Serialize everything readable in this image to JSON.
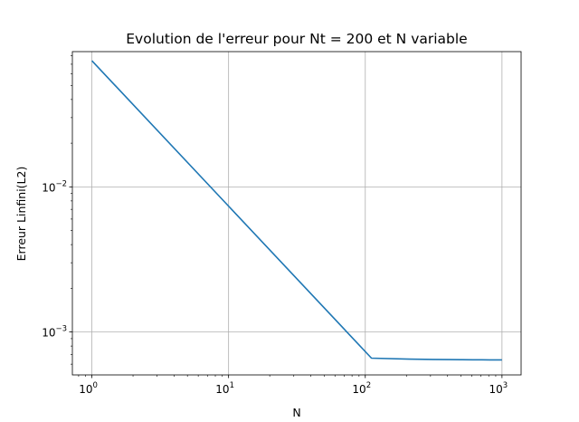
{
  "chart_data": {
    "type": "line",
    "title": "Evolution de l'erreur pour Nt = 200 et N variable",
    "xlabel": "N",
    "ylabel": "Erreur Linfini(L2)",
    "xscale": "log",
    "yscale": "log",
    "xlim": [
      0.72,
      1380
    ],
    "ylim": [
      0.000506,
      0.0855
    ],
    "grid": true,
    "line_color": "#1f77b4",
    "grid_color": "#b0b0b0",
    "x_ticks": [
      {
        "value": 1,
        "base": "10",
        "exp": "0"
      },
      {
        "value": 10,
        "base": "10",
        "exp": "1"
      },
      {
        "value": 100,
        "base": "10",
        "exp": "2"
      },
      {
        "value": 1000,
        "base": "10",
        "exp": "3"
      }
    ],
    "y_ticks": [
      {
        "value": 0.001,
        "base": "10",
        "exp": "−3"
      },
      {
        "value": 0.01,
        "base": "10",
        "exp": "−2"
      }
    ],
    "series": [
      {
        "x": [
          1,
          111,
          211,
          311,
          411,
          511,
          611,
          711,
          811,
          911,
          1000
        ],
        "y": [
          0.074,
          0.00066,
          0.00065,
          0.000647,
          0.000645,
          0.000644,
          0.000643,
          0.000643,
          0.000642,
          0.000642,
          0.000642
        ]
      }
    ]
  }
}
